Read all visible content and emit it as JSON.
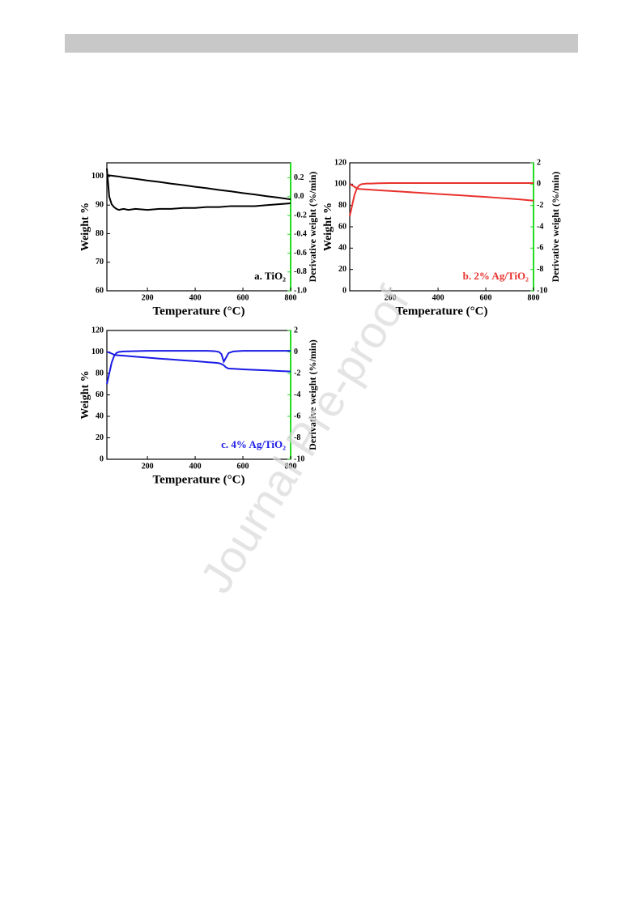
{
  "watermark": "Journal Pre-proof",
  "chart_data": [
    {
      "type": "line",
      "annotation": "a. TiO₂",
      "annotation_color": "#000000",
      "x_label": "Temperature (°C)",
      "y_label": "Weight %",
      "y2_label": "Derivative weight (%/min)",
      "xlim": [
        30,
        800
      ],
      "xticks": [
        200,
        400,
        600,
        800
      ],
      "ylim": [
        60,
        104.8
      ],
      "yticks": [
        60,
        70,
        80,
        90,
        100
      ],
      "y2lim": [
        -1.0,
        0.36
      ],
      "y2ticks": [
        {
          "value": -1.0,
          "label": "-1.0"
        },
        -0.8,
        -0.6,
        -0.4,
        -0.2,
        {
          "value": 0.0,
          "label": "0.0"
        },
        0.2
      ],
      "x": [
        30,
        40,
        50,
        60,
        70,
        80,
        100,
        120,
        150,
        200,
        250,
        300,
        350,
        400,
        450,
        500,
        550,
        600,
        650,
        700,
        750,
        800
      ],
      "series": [
        {
          "color": "#000000",
          "values": [
            100.5,
            100.4,
            100.3,
            100.2,
            100.1,
            100.0,
            99.7,
            99.5,
            99.2,
            98.6,
            98.1,
            97.5,
            97.0,
            96.4,
            95.9,
            95.3,
            94.8,
            94.2,
            93.7,
            93.1,
            92.6,
            92.0
          ]
        },
        {
          "color": "#000000",
          "axis": "y2",
          "values": [
            0.3,
            0.0,
            -0.08,
            -0.11,
            -0.13,
            -0.14,
            -0.13,
            -0.14,
            -0.13,
            -0.14,
            -0.13,
            -0.13,
            -0.12,
            -0.12,
            -0.11,
            -0.11,
            -0.1,
            -0.1,
            -0.1,
            -0.09,
            -0.08,
            -0.07
          ]
        }
      ]
    },
    {
      "type": "line",
      "annotation": "b. 2% Ag/TiO₂",
      "annotation_color": "#e8322d",
      "x_label": "Temperature (°C)",
      "y_label": "Weight %",
      "y2_label": "Derivative weight (%/min)",
      "xlim": [
        30,
        800
      ],
      "xticks": [
        200,
        400,
        600,
        800
      ],
      "ylim": [
        0,
        120
      ],
      "yticks": [
        0,
        20,
        40,
        60,
        80,
        100,
        120
      ],
      "y2lim": [
        -10,
        2
      ],
      "y2ticks": [
        -10,
        -8,
        -6,
        -4,
        -2,
        0,
        2
      ],
      "x": [
        30,
        40,
        50,
        60,
        70,
        80,
        100,
        120,
        150,
        200,
        250,
        300,
        350,
        400,
        450,
        500,
        550,
        600,
        650,
        700,
        750,
        800
      ],
      "series": [
        {
          "color": "#e8322d",
          "values": [
            100,
            99,
            97.5,
            96,
            95.5,
            95.3,
            95,
            94.7,
            94.3,
            93.6,
            92.9,
            92.2,
            91.5,
            90.8,
            90.1,
            89.4,
            88.7,
            88,
            87.2,
            86.4,
            85.5,
            84.5
          ]
        },
        {
          "color": "#e8322d",
          "axis": "y2",
          "values": [
            -3,
            -2,
            -1,
            -0.4,
            -0.1,
            0,
            0.05,
            0.05,
            0.08,
            0.1,
            0.1,
            0.1,
            0.1,
            0.1,
            0.1,
            0.1,
            0.1,
            0.1,
            0.1,
            0.1,
            0.1,
            0.1
          ]
        }
      ]
    },
    {
      "type": "line",
      "annotation": "c. 4% Ag/TiO₂",
      "annotation_color": "#1a1ae6",
      "x_label": "Temperature (°C)",
      "y_label": "Weight %",
      "y2_label": "Derivative weight (%/min)",
      "xlim": [
        30,
        800
      ],
      "xticks": [
        200,
        400,
        600,
        800
      ],
      "ylim": [
        0,
        120
      ],
      "yticks": [
        0,
        20,
        40,
        60,
        80,
        100,
        120
      ],
      "y2lim": [
        -10,
        2
      ],
      "y2ticks": [
        -10,
        -8,
        -6,
        -4,
        -2,
        0,
        2
      ],
      "x": [
        30,
        40,
        50,
        60,
        70,
        80,
        100,
        150,
        200,
        250,
        300,
        350,
        400,
        450,
        480,
        500,
        510,
        520,
        530,
        540,
        560,
        600,
        650,
        700,
        750,
        800
      ],
      "series": [
        {
          "color": "#1a1ae6",
          "values": [
            100,
            99.5,
            98.5,
            97.5,
            97,
            96.8,
            96.5,
            95.6,
            94.7,
            93.8,
            93,
            92.2,
            91.4,
            90.5,
            90,
            89.5,
            88.8,
            87.5,
            85.5,
            84.5,
            84.3,
            83.8,
            83.3,
            82.8,
            82.3,
            81.8
          ]
        },
        {
          "color": "#1a1ae6",
          "axis": "y2",
          "values": [
            -3,
            -2,
            -1,
            -0.4,
            -0.1,
            0,
            0.05,
            0.08,
            0.1,
            0.1,
            0.1,
            0.1,
            0.1,
            0.1,
            0.08,
            0,
            -0.2,
            -0.9,
            -0.5,
            -0.1,
            0.05,
            0.1,
            0.1,
            0.1,
            0.1,
            0.1
          ]
        }
      ]
    }
  ]
}
